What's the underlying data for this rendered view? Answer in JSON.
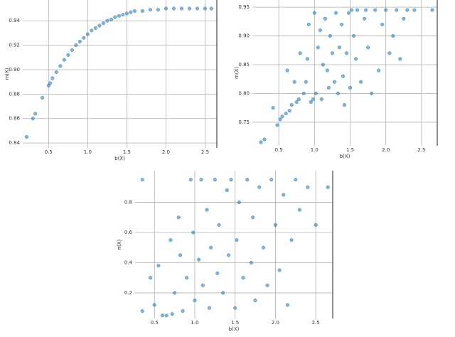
{
  "chart_data": [
    {
      "type": "scatter",
      "xlabel": "b(X)",
      "ylabel": "m(X)",
      "color": "#1f77b4",
      "grid": true,
      "xlim": [
        0.17,
        2.65
      ],
      "ylim": [
        0.836,
        0.957
      ],
      "xticks": [
        0.5,
        {
          "value": 1,
          "label": "1.0"
        },
        1.5,
        {
          "value": 2,
          "label": "2.0"
        },
        2.5
      ],
      "yticks": [
        0.84,
        0.86,
        0.88,
        {
          "value": 0.9,
          "label": "0.90"
        },
        0.92,
        0.94
      ],
      "x": [
        0.22,
        0.3,
        0.33,
        0.42,
        0.5,
        0.52,
        0.55,
        0.6,
        0.65,
        0.7,
        0.75,
        0.8,
        0.85,
        0.9,
        0.95,
        1.0,
        1.05,
        1.1,
        1.15,
        1.2,
        1.25,
        1.3,
        1.35,
        1.4,
        1.45,
        1.5,
        1.55,
        1.6,
        1.7,
        1.8,
        1.9,
        2.0,
        2.1,
        2.2,
        2.3,
        2.4,
        2.5,
        2.58
      ],
      "values": [
        0.845,
        0.86,
        0.864,
        0.877,
        0.887,
        0.889,
        0.893,
        0.898,
        0.903,
        0.908,
        0.912,
        0.916,
        0.92,
        0.923,
        0.926,
        0.929,
        0.932,
        0.934,
        0.936,
        0.938,
        0.94,
        0.941,
        0.943,
        0.944,
        0.945,
        0.946,
        0.947,
        0.948,
        0.948,
        0.949,
        0.949,
        0.95,
        0.95,
        0.95,
        0.95,
        0.95,
        0.95,
        0.95
      ]
    },
    {
      "type": "scatter",
      "xlabel": "b(X)",
      "ylabel": "m(X)",
      "color": "#1f77b4",
      "grid": true,
      "xlim": [
        0.13,
        2.72
      ],
      "ylim": [
        0.709,
        0.9625
      ],
      "xticks": [
        0.5,
        {
          "value": 1,
          "label": "1.0"
        },
        1.5,
        {
          "value": 2,
          "label": "2.0"
        },
        2.5
      ],
      "yticks": [
        0.75,
        {
          "value": 0.8,
          "label": "0.80"
        },
        0.85,
        {
          "value": 0.9,
          "label": "0.90"
        },
        0.95
      ],
      "x": [
        0.25,
        0.3,
        0.42,
        0.48,
        0.52,
        0.55,
        0.6,
        0.62,
        0.65,
        0.68,
        0.72,
        0.75,
        0.78,
        0.8,
        0.85,
        0.88,
        0.9,
        0.92,
        0.95,
        0.98,
        1.0,
        1.02,
        1.05,
        1.08,
        1.1,
        1.12,
        1.15,
        1.18,
        1.2,
        1.22,
        1.25,
        1.28,
        1.3,
        1.33,
        1.35,
        1.38,
        1.4,
        1.42,
        1.45,
        1.48,
        1.5,
        1.52,
        1.55,
        1.58,
        1.6,
        1.65,
        1.7,
        1.72,
        1.75,
        1.8,
        1.85,
        1.9,
        1.95,
        2.0,
        2.05,
        2.1,
        2.15,
        2.2,
        2.25,
        2.3,
        2.4,
        2.65
      ],
      "values": [
        0.715,
        0.72,
        0.775,
        0.745,
        0.755,
        0.76,
        0.765,
        0.84,
        0.77,
        0.78,
        0.82,
        0.785,
        0.79,
        0.87,
        0.8,
        0.82,
        0.86,
        0.92,
        0.785,
        0.79,
        0.94,
        0.8,
        0.88,
        0.91,
        0.79,
        0.85,
        0.93,
        0.84,
        0.81,
        0.9,
        0.87,
        0.82,
        0.94,
        0.8,
        0.88,
        0.92,
        0.83,
        0.78,
        0.87,
        0.94,
        0.81,
        0.945,
        0.9,
        0.86,
        0.945,
        0.82,
        0.93,
        0.945,
        0.88,
        0.8,
        0.945,
        0.84,
        0.92,
        0.945,
        0.87,
        0.9,
        0.945,
        0.86,
        0.93,
        0.945,
        0.945,
        0.945
      ]
    },
    {
      "type": "scatter",
      "xlabel": "b(X)",
      "ylabel": "π(X)",
      "color": "#1f77b4",
      "grid": true,
      "xlim": [
        0.26,
        2.71
      ],
      "ylim": [
        0.03,
        1.01
      ],
      "xticks": [
        0.5,
        {
          "value": 1,
          "label": "1.0"
        },
        1.5,
        {
          "value": 2,
          "label": "2.0"
        },
        2.5
      ],
      "yticks": [
        0.2,
        0.4,
        0.6,
        0.8
      ],
      "x": [
        0.35,
        0.35,
        0.45,
        0.5,
        0.55,
        0.6,
        0.65,
        0.7,
        0.72,
        0.75,
        0.8,
        0.82,
        0.85,
        0.9,
        0.95,
        0.98,
        1.0,
        1.05,
        1.08,
        1.1,
        1.15,
        1.18,
        1.2,
        1.25,
        1.28,
        1.3,
        1.35,
        1.4,
        1.42,
        1.45,
        1.5,
        1.52,
        1.55,
        1.6,
        1.65,
        1.7,
        1.72,
        1.75,
        1.8,
        1.85,
        1.9,
        1.95,
        2.0,
        2.05,
        2.1,
        2.15,
        2.2,
        2.25,
        2.3,
        2.4,
        2.5,
        2.65
      ],
      "values": [
        0.95,
        0.08,
        0.3,
        0.12,
        0.38,
        0.05,
        0.05,
        0.55,
        0.06,
        0.2,
        0.7,
        0.45,
        0.08,
        0.3,
        0.95,
        0.6,
        0.15,
        0.42,
        0.95,
        0.25,
        0.75,
        0.1,
        0.5,
        0.95,
        0.33,
        0.65,
        0.2,
        0.88,
        0.45,
        0.95,
        0.1,
        0.55,
        0.8,
        0.3,
        0.95,
        0.4,
        0.7,
        0.15,
        0.9,
        0.5,
        0.25,
        0.95,
        0.65,
        0.35,
        0.85,
        0.12,
        0.55,
        0.95,
        0.75,
        0.9,
        0.65,
        0.9
      ]
    }
  ]
}
